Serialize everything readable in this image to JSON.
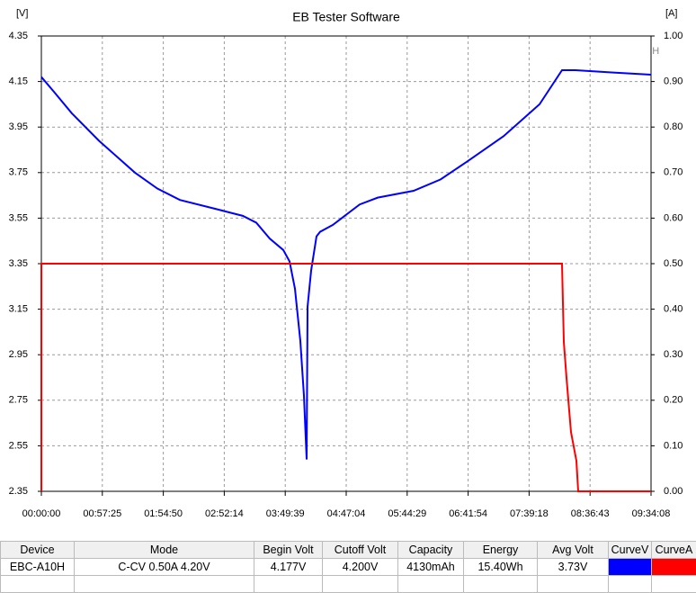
{
  "chart_data": {
    "type": "line",
    "title": "EB Tester Software",
    "ylabel": "[V]",
    "y2label": "[A]",
    "watermark": "ZKETECH",
    "xlim": [
      0,
      34448
    ],
    "xticks": [
      {
        "value": 0,
        "label": "00:00:00"
      },
      {
        "value": 3445,
        "label": "00:57:25"
      },
      {
        "value": 6890,
        "label": "01:54:50"
      },
      {
        "value": 10334,
        "label": "02:52:14"
      },
      {
        "value": 13779,
        "label": "03:49:39"
      },
      {
        "value": 17224,
        "label": "04:47:04"
      },
      {
        "value": 20669,
        "label": "05:44:29"
      },
      {
        "value": 24114,
        "label": "06:41:54"
      },
      {
        "value": 27558,
        "label": "07:39:18"
      },
      {
        "value": 31003,
        "label": "08:36:43"
      },
      {
        "value": 34448,
        "label": "09:34:08"
      }
    ],
    "ylim": [
      2.35,
      4.35
    ],
    "yticks": [
      2.35,
      2.55,
      2.75,
      2.95,
      3.15,
      3.35,
      3.55,
      3.75,
      3.95,
      4.15,
      4.35
    ],
    "y2lim": [
      0,
      1
    ],
    "y2ticks": [
      {
        "value": 0,
        "label": "0.00"
      },
      {
        "value": 0.1,
        "label": "0.10"
      },
      {
        "value": 0.2,
        "label": "0.20"
      },
      {
        "value": 0.3,
        "label": "0.30"
      },
      {
        "value": 0.4,
        "label": "0.40"
      },
      {
        "value": 0.5,
        "label": "0.50"
      },
      {
        "value": 0.6,
        "label": "0.60"
      },
      {
        "value": 0.7,
        "label": "0.70"
      },
      {
        "value": 0.8,
        "label": "0.80"
      },
      {
        "value": 0.9,
        "label": "0.90"
      },
      {
        "value": 1,
        "label": "1.00"
      }
    ],
    "grid": true,
    "series": [
      {
        "name": "CurveV",
        "color": "#0000ff",
        "axis": "y",
        "x": [
          0,
          711,
          1727,
          3252,
          5284,
          6554,
          7824,
          9867,
          11381,
          12143,
          12905,
          13668,
          14023,
          14328,
          14633,
          14836,
          14989,
          15040,
          15243,
          15547,
          15750,
          16462,
          16970,
          17986,
          19002,
          21035,
          22559,
          24083,
          26116,
          28148,
          29418,
          30180,
          32212,
          34448
        ],
        "values": [
          4.17,
          4.105,
          4.01,
          3.89,
          3.75,
          3.68,
          3.63,
          3.59,
          3.56,
          3.53,
          3.46,
          3.41,
          3.36,
          3.24,
          3.01,
          2.77,
          2.49,
          3.16,
          3.32,
          3.47,
          3.49,
          3.52,
          3.55,
          3.61,
          3.64,
          3.67,
          3.72,
          3.8,
          3.91,
          4.05,
          4.2,
          4.2,
          4.19,
          4.18
        ]
      },
      {
        "name": "CurveA",
        "color": "#ff0000",
        "axis": "y2",
        "x": [
          0,
          0,
          29418,
          29520,
          29672,
          29926,
          30231,
          30333,
          34448
        ],
        "values": [
          0,
          0.5,
          0.5,
          0.328,
          0.249,
          0.13,
          0.067,
          0,
          0
        ]
      }
    ]
  },
  "table": {
    "headers": [
      "Device",
      "Mode",
      "Begin Volt",
      "Cutoff Volt",
      "Capacity",
      "Energy",
      "Avg Volt",
      "CurveV",
      "CurveA"
    ],
    "rows": [
      [
        "EBC-A10H",
        "C-CV  0.50A  4.20V",
        "4.177V",
        "4.200V",
        "4130mAh",
        "15.40Wh",
        "3.73V"
      ]
    ]
  }
}
